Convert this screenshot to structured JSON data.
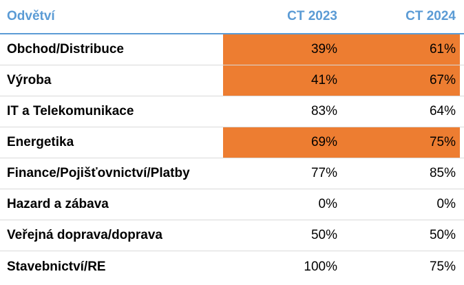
{
  "chart_data": {
    "type": "table",
    "columns": [
      "Odvětví",
      "CT 2023",
      "CT 2024"
    ],
    "rows": [
      {
        "sector": "Obchod/Distribuce",
        "ct2023": "39%",
        "ct2024": "61%",
        "highlight": true
      },
      {
        "sector": "Výroba",
        "ct2023": "41%",
        "ct2024": "67%",
        "highlight": true
      },
      {
        "sector": "IT a Telekomunikace",
        "ct2023": "83%",
        "ct2024": "64%",
        "highlight": false
      },
      {
        "sector": "Energetika",
        "ct2023": "69%",
        "ct2024": "75%",
        "highlight": true
      },
      {
        "sector": "Finance/Pojišťovnictví/Platby",
        "ct2023": "77%",
        "ct2024": "85%",
        "highlight": false
      },
      {
        "sector": "Hazard a zábava",
        "ct2023": "0%",
        "ct2024": "0%",
        "highlight": false
      },
      {
        "sector": "Veřejná doprava/doprava",
        "ct2023": "50%",
        "ct2024": "50%",
        "highlight": false
      },
      {
        "sector": "Stavebnictví/RE",
        "ct2023": "100%",
        "ct2024": "75%",
        "highlight": false
      }
    ]
  },
  "colors": {
    "header_text": "#5b9bd5",
    "highlight_fill": "#ed7d31",
    "row_divider": "#d9d9d9"
  }
}
